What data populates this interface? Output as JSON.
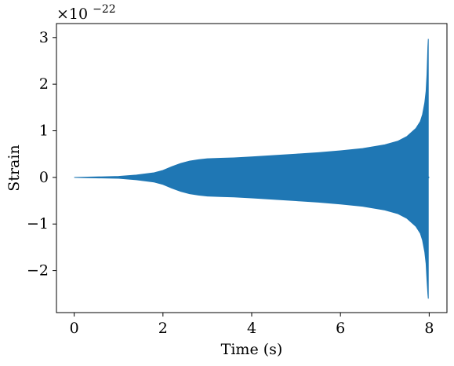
{
  "chart_data": {
    "type": "line",
    "xlabel": "Time (s)",
    "ylabel": "Strain",
    "xlim": [
      -0.4,
      8.4
    ],
    "ylim": [
      -2.9,
      3.3
    ],
    "x_ticks": [
      0,
      2,
      4,
      6,
      8
    ],
    "x_tick_labels": [
      "0",
      "2",
      "4",
      "6",
      "8"
    ],
    "y_ticks": [
      -2,
      -1,
      0,
      1,
      2,
      3
    ],
    "y_tick_labels": [
      "−2",
      "−1",
      "0",
      "1",
      "2",
      "3"
    ],
    "y_scale_text": {
      "base": "×10",
      "exponent": "−22"
    },
    "grid": false,
    "legend": false,
    "series": [
      {
        "color": "#1f77b4",
        "envelope_upper": {
          "x": [
            0,
            0.5,
            1.0,
            1.4,
            1.8,
            2.0,
            2.2,
            2.4,
            2.6,
            2.8,
            3.0,
            3.3,
            3.6,
            4.0,
            4.5,
            5.0,
            5.5,
            6.0,
            6.5,
            7.0,
            7.3,
            7.5,
            7.7,
            7.8,
            7.85,
            7.9,
            7.93,
            7.95,
            7.97,
            7.98
          ],
          "y": [
            0.0,
            0.01,
            0.02,
            0.05,
            0.1,
            0.15,
            0.23,
            0.3,
            0.35,
            0.38,
            0.4,
            0.41,
            0.42,
            0.44,
            0.47,
            0.5,
            0.53,
            0.57,
            0.62,
            0.7,
            0.78,
            0.88,
            1.05,
            1.2,
            1.35,
            1.6,
            1.85,
            2.2,
            2.8,
            2.97
          ]
        },
        "envelope_lower": {
          "x": [
            0,
            0.5,
            1.0,
            1.4,
            1.8,
            2.0,
            2.2,
            2.4,
            2.6,
            2.8,
            3.0,
            3.3,
            3.6,
            4.0,
            4.5,
            5.0,
            5.5,
            6.0,
            6.5,
            7.0,
            7.3,
            7.5,
            7.7,
            7.8,
            7.85,
            7.9,
            7.93,
            7.95,
            7.97,
            7.98
          ],
          "y": [
            0.0,
            -0.01,
            -0.02,
            -0.05,
            -0.1,
            -0.15,
            -0.23,
            -0.3,
            -0.35,
            -0.38,
            -0.4,
            -0.41,
            -0.42,
            -0.44,
            -0.47,
            -0.5,
            -0.53,
            -0.57,
            -0.62,
            -0.7,
            -0.78,
            -0.88,
            -1.05,
            -1.2,
            -1.35,
            -1.6,
            -1.85,
            -2.2,
            -2.5,
            -2.6
          ]
        },
        "tail": {
          "x": [
            7.98,
            8.0
          ],
          "y": [
            0.0,
            0.0
          ]
        }
      }
    ]
  }
}
